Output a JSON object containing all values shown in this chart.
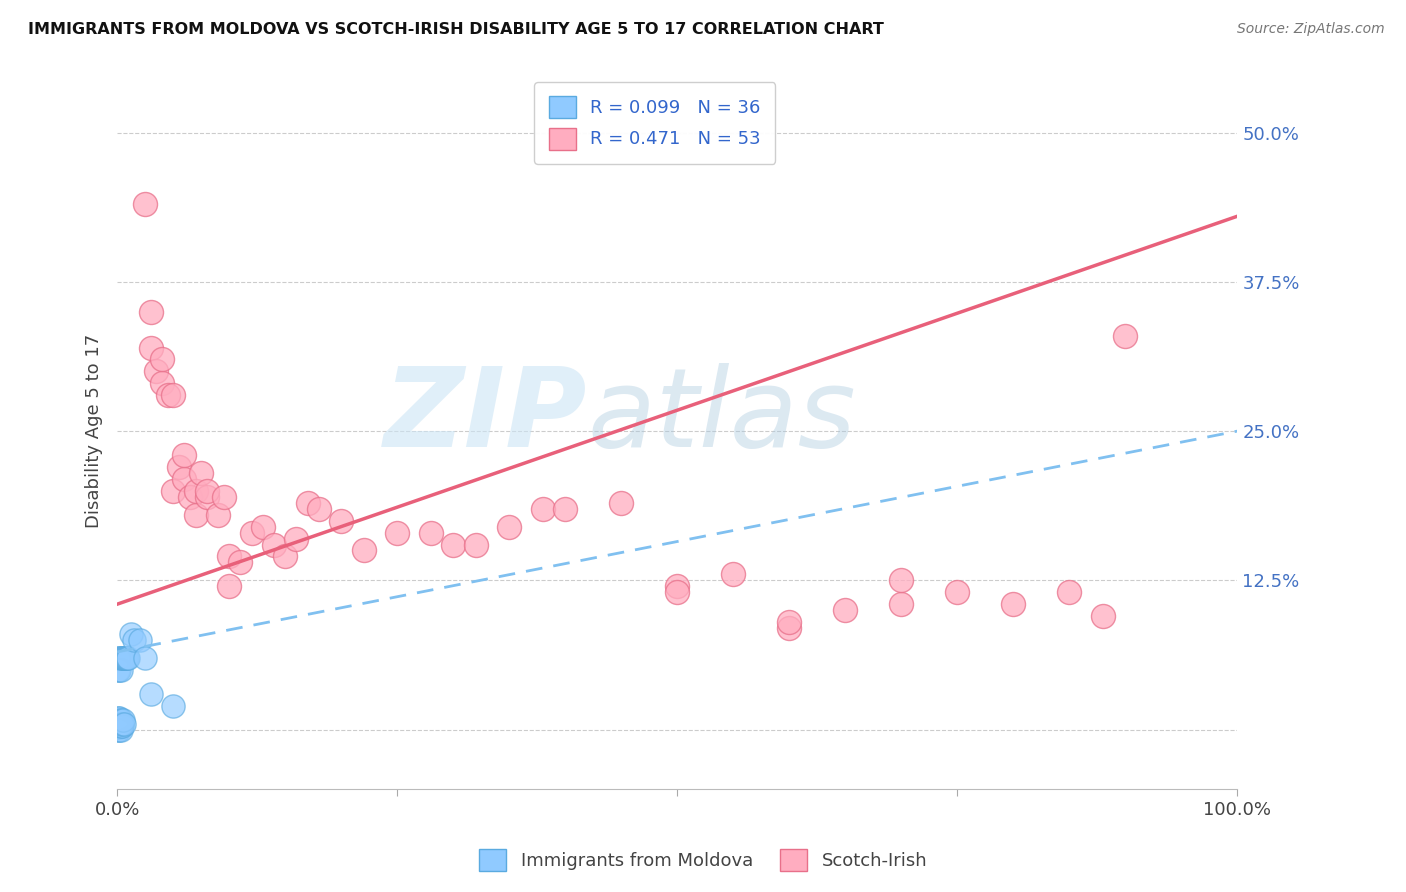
{
  "title": "IMMIGRANTS FROM MOLDOVA VS SCOTCH-IRISH DISABILITY AGE 5 TO 17 CORRELATION CHART",
  "source": "Source: ZipAtlas.com",
  "ylabel": "Disability Age 5 to 17",
  "ytick_labels": [
    "",
    "12.5%",
    "25.0%",
    "37.5%",
    "50.0%"
  ],
  "ytick_values": [
    0,
    0.125,
    0.25,
    0.375,
    0.5
  ],
  "xlim": [
    0,
    1.0
  ],
  "ylim": [
    -0.05,
    0.55
  ],
  "legend_r1": "R = 0.099   N = 36",
  "legend_r2": "R = 0.471   N = 53",
  "blue_color": "#90caff",
  "pink_color": "#ffadc0",
  "blue_edge_color": "#5aaae0",
  "pink_edge_color": "#e8708a",
  "blue_line_color": "#80c0f0",
  "pink_line_color": "#e8607a",
  "moldova_x": [
    0.001,
    0.001,
    0.001,
    0.001,
    0.001,
    0.001,
    0.002,
    0.002,
    0.002,
    0.002,
    0.002,
    0.002,
    0.002,
    0.003,
    0.003,
    0.003,
    0.003,
    0.003,
    0.003,
    0.004,
    0.004,
    0.004,
    0.005,
    0.005,
    0.006,
    0.006,
    0.007,
    0.008,
    0.009,
    0.01,
    0.012,
    0.015,
    0.02,
    0.025,
    0.03,
    0.05
  ],
  "moldova_y": [
    0.0,
    0.005,
    0.008,
    0.01,
    0.05,
    0.06,
    0.0,
    0.002,
    0.005,
    0.008,
    0.01,
    0.05,
    0.06,
    0.0,
    0.003,
    0.005,
    0.008,
    0.05,
    0.06,
    0.003,
    0.005,
    0.06,
    0.008,
    0.06,
    0.005,
    0.06,
    0.06,
    0.06,
    0.06,
    0.06,
    0.08,
    0.075,
    0.075,
    0.06,
    0.03,
    0.02
  ],
  "scotch_x": [
    0.025,
    0.03,
    0.03,
    0.035,
    0.04,
    0.04,
    0.045,
    0.05,
    0.05,
    0.055,
    0.06,
    0.06,
    0.065,
    0.07,
    0.07,
    0.075,
    0.08,
    0.08,
    0.09,
    0.095,
    0.1,
    0.1,
    0.11,
    0.12,
    0.13,
    0.14,
    0.15,
    0.16,
    0.17,
    0.18,
    0.2,
    0.22,
    0.25,
    0.28,
    0.3,
    0.32,
    0.35,
    0.38,
    0.4,
    0.45,
    0.5,
    0.55,
    0.6,
    0.65,
    0.7,
    0.75,
    0.8,
    0.85,
    0.88,
    0.5,
    0.6,
    0.7,
    0.9
  ],
  "scotch_y": [
    0.44,
    0.32,
    0.35,
    0.3,
    0.29,
    0.31,
    0.28,
    0.2,
    0.28,
    0.22,
    0.21,
    0.23,
    0.195,
    0.18,
    0.2,
    0.215,
    0.195,
    0.2,
    0.18,
    0.195,
    0.12,
    0.145,
    0.14,
    0.165,
    0.17,
    0.155,
    0.145,
    0.16,
    0.19,
    0.185,
    0.175,
    0.15,
    0.165,
    0.165,
    0.155,
    0.155,
    0.17,
    0.185,
    0.185,
    0.19,
    0.12,
    0.13,
    0.085,
    0.1,
    0.105,
    0.115,
    0.105,
    0.115,
    0.095,
    0.115,
    0.09,
    0.125,
    0.33
  ],
  "pink_line_x0": 0.0,
  "pink_line_y0": 0.105,
  "pink_line_x1": 1.0,
  "pink_line_y1": 0.43,
  "blue_line_x0": 0.0,
  "blue_line_y0": 0.065,
  "blue_line_x1": 1.0,
  "blue_line_y1": 0.25
}
